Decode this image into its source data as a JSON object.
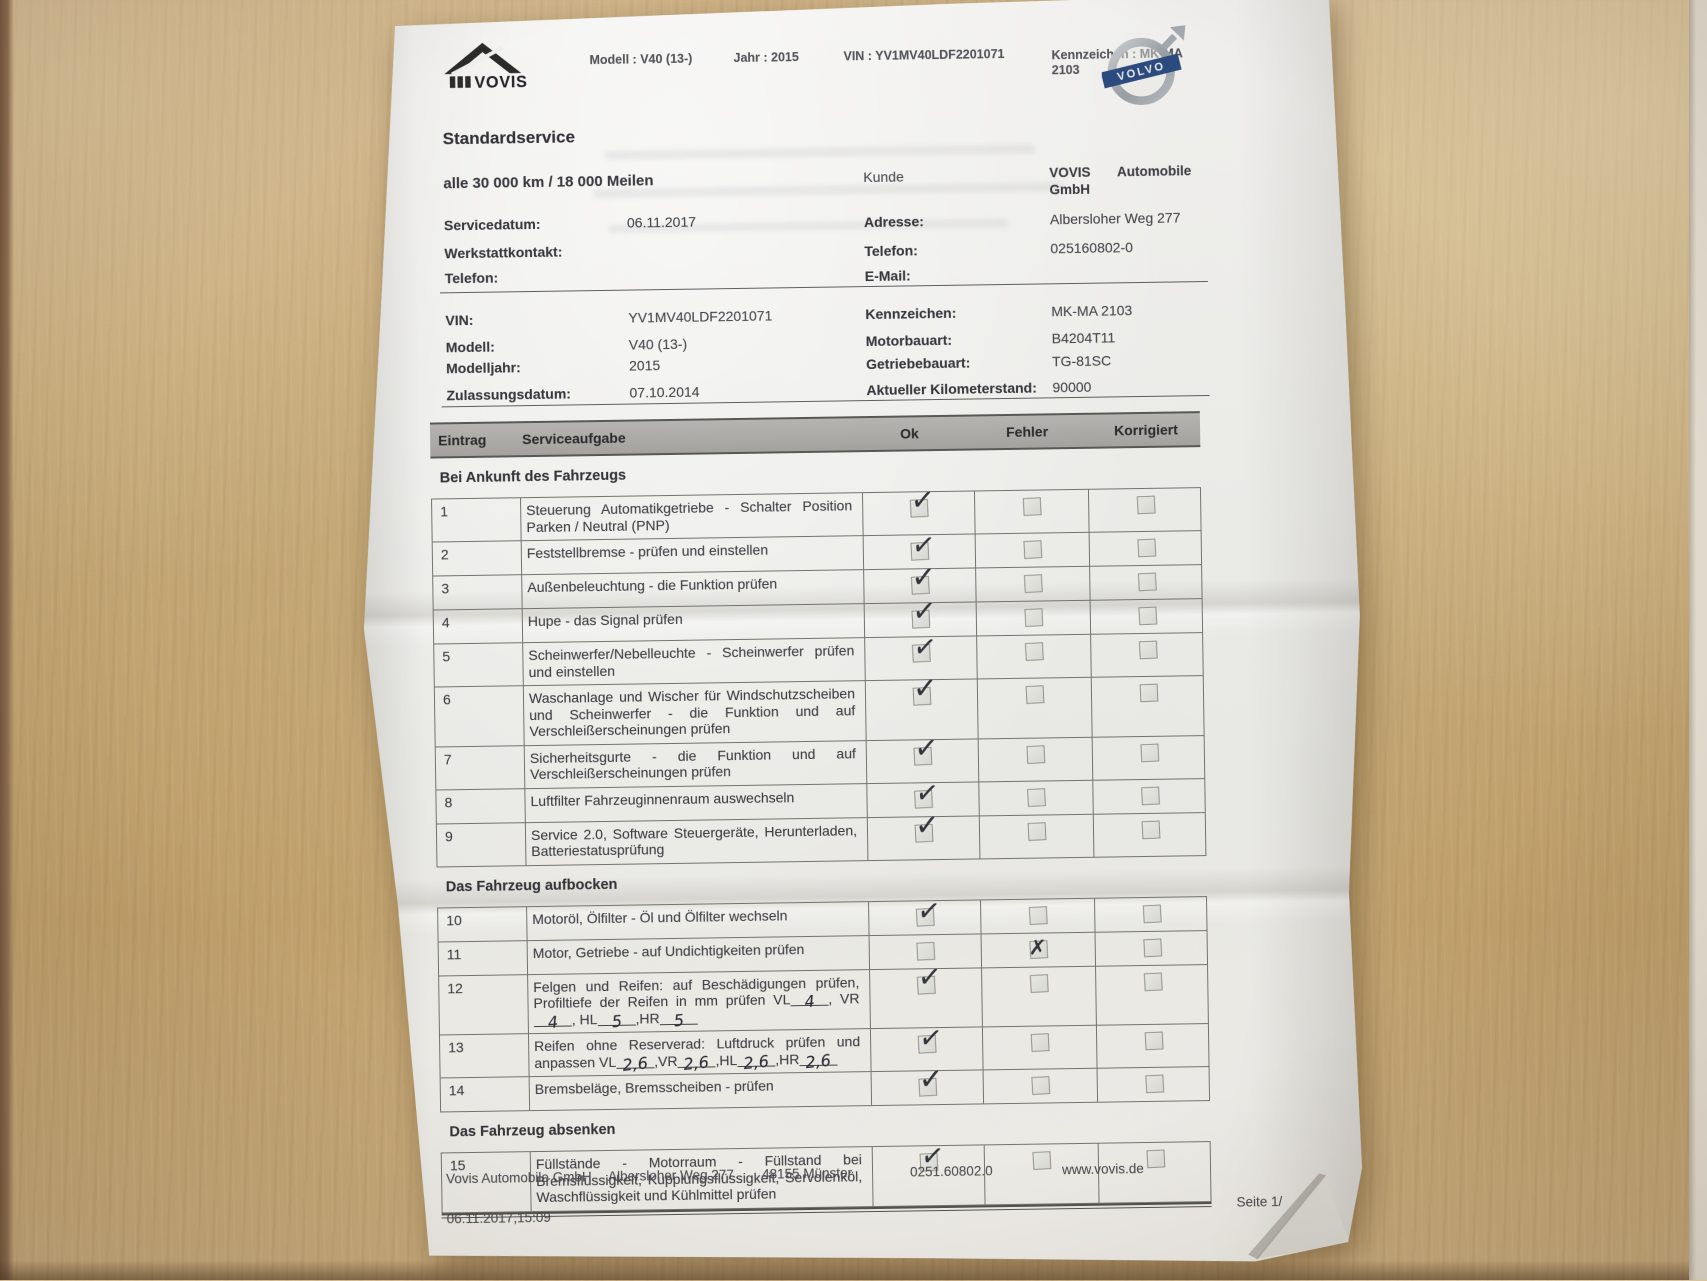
{
  "colors": {
    "volvo_blue": "#2b4a7e",
    "paper": "#ecebe8",
    "wood": "#c4a876",
    "ink": "#33333c"
  },
  "header": {
    "brand": "VOVIS",
    "volvo_logo_text": "VOLVO",
    "meta": [
      {
        "label": "Modell :",
        "value": "V40 (13-)"
      },
      {
        "label": "Jahr :",
        "value": "2015"
      },
      {
        "label": "VIN :",
        "value": "YV1MV40LDF2201071"
      },
      {
        "label": "Kennzeichen :",
        "value": "MK-MA 2103"
      }
    ]
  },
  "title": "Standardservice",
  "interval": "alle 30 000 km / 18 000 Meilen",
  "service_info": [
    {
      "label": "Servicedatum:",
      "value": "06.11.2017"
    },
    {
      "label": "Werkstattkontakt:",
      "value": ""
    },
    {
      "label": "Telefon:",
      "value": ""
    }
  ],
  "customer": {
    "heading": "Kunde",
    "name": "VOVIS Automobile GmbH",
    "rows": [
      {
        "label": "Adresse:",
        "value": "Albersloher Weg 277"
      },
      {
        "label": "Telefon:",
        "value": "025160802-0"
      },
      {
        "label": "E-Mail:",
        "value": ""
      }
    ]
  },
  "vehicle_left": [
    {
      "label": "VIN:",
      "value": "YV1MV40LDF2201071"
    },
    {
      "label": "Modell:",
      "value": "V40 (13-)"
    },
    {
      "label": "Modelljahr:",
      "value": "2015"
    },
    {
      "label": "Zulassungsdatum:",
      "value": "07.10.2014"
    }
  ],
  "vehicle_right": [
    {
      "label": "Kennzeichen:",
      "value": "MK-MA 2103"
    },
    {
      "label": "Motorbauart:",
      "value": "B4204T11"
    },
    {
      "label": "Getriebebauart:",
      "value": "TG-81SC"
    },
    {
      "label": "Aktueller Kilometerstand:",
      "value": "90000"
    }
  ],
  "marks": {
    "check": "✓",
    "x": "✗"
  },
  "table": {
    "headers": [
      "Eintrag",
      "Serviceaufgabe",
      "Ok",
      "Fehler",
      "Korrigiert"
    ],
    "rows": [
      {
        "type": "section",
        "label": "Bei Ankunft des Fahrzeugs"
      },
      {
        "type": "item",
        "num": "1",
        "task": "Steuerung Automatikgetriebe - Schalter Position Parken / Neutral (PNP)",
        "ok": "check",
        "fehler": "empty",
        "korrigiert": "empty"
      },
      {
        "type": "item",
        "num": "2",
        "task": "Feststellbremse - prüfen und einstellen",
        "ok": "check",
        "fehler": "empty",
        "korrigiert": "empty"
      },
      {
        "type": "item",
        "num": "3",
        "task": "Außenbeleuchtung - die Funktion prüfen",
        "ok": "check",
        "fehler": "empty",
        "korrigiert": "empty"
      },
      {
        "type": "item",
        "num": "4",
        "task": "Hupe - das Signal prüfen",
        "ok": "check",
        "fehler": "empty",
        "korrigiert": "empty"
      },
      {
        "type": "item",
        "num": "5",
        "task": "Scheinwerfer/Nebelleuchte - Scheinwerfer prüfen und einstellen",
        "ok": "check",
        "fehler": "empty",
        "korrigiert": "empty"
      },
      {
        "type": "item",
        "num": "6",
        "task": "Waschanlage und Wischer für Windschutzscheiben und Scheinwerfer - die Funktion und auf Verschleißerscheinungen prüfen",
        "ok": "check",
        "fehler": "empty",
        "korrigiert": "empty"
      },
      {
        "type": "item",
        "num": "7",
        "task": "Sicherheitsgurte - die Funktion und auf Verschleißerscheinungen prüfen",
        "ok": "check",
        "fehler": "empty",
        "korrigiert": "empty"
      },
      {
        "type": "item",
        "num": "8",
        "task": "Luftfilter Fahrzeuginnenraum auswechseln",
        "ok": "check",
        "fehler": "empty",
        "korrigiert": "empty"
      },
      {
        "type": "item",
        "num": "9",
        "task": "Service 2.0, Software Steuergeräte, Herunterladen, Batteriestatusprüfung",
        "ok": "check",
        "fehler": "empty",
        "korrigiert": "empty"
      },
      {
        "type": "section",
        "label": "Das Fahrzeug aufbocken"
      },
      {
        "type": "item",
        "num": "10",
        "task": "Motoröl, Ölfilter - Öl und Ölfilter wechseln",
        "ok": "check",
        "fehler": "empty",
        "korrigiert": "empty"
      },
      {
        "type": "item",
        "num": "11",
        "task": "Motor, Getriebe - auf Undichtigkeiten prüfen",
        "ok": "empty",
        "fehler": "x",
        "korrigiert": "empty"
      },
      {
        "type": "item",
        "num": "12",
        "task": "Felgen und Reifen: auf Beschädigungen prüfen, Profiltiefe der Reifen in mm prüfen",
        "fields": [
          {
            "label": "VL",
            "value": "4",
            "sep": ", "
          },
          {
            "label": "VR",
            "value": "4",
            "sep": ", "
          },
          {
            "label": "HL",
            "value": "5",
            "sep": ","
          },
          {
            "label": "HR",
            "value": "5",
            "sep": ""
          }
        ],
        "ok": "check",
        "fehler": "empty",
        "korrigiert": "empty"
      },
      {
        "type": "item",
        "num": "13",
        "task": "Reifen ohne Reserverad: Luftdruck prüfen und anpassen",
        "fields": [
          {
            "label": "VL",
            "value": "2,6",
            "sep": ","
          },
          {
            "label": "VR",
            "value": "2,6",
            "sep": ","
          },
          {
            "label": "HL",
            "value": "2,6",
            "sep": ","
          },
          {
            "label": "HR",
            "value": "2,6",
            "sep": ""
          }
        ],
        "ok": "check",
        "fehler": "empty",
        "korrigiert": "empty"
      },
      {
        "type": "item",
        "num": "14",
        "task": "Bremsbeläge, Bremsscheiben - prüfen",
        "ok": "check",
        "fehler": "empty",
        "korrigiert": "empty"
      },
      {
        "type": "section",
        "label": "Das Fahrzeug absenken"
      },
      {
        "type": "item",
        "num": "15",
        "task": "Füllstände - Motorraum - Füllstand bei Bremsflüssigkeit, Kupplungsflüssigkeit, Servolenköl, Waschflüssigkeit und Kühlmittel prüfen",
        "ok": "check",
        "fehler": "empty",
        "korrigiert": "empty"
      }
    ]
  },
  "footer": {
    "columns": [
      "Vovis Automobile GmbH",
      "Albersloher Weg 277",
      "48155 Münster",
      "0251.60802.0",
      "www.vovis.de"
    ],
    "timestamp": "06.11.2017,15:09",
    "page": "Seite 1/"
  }
}
